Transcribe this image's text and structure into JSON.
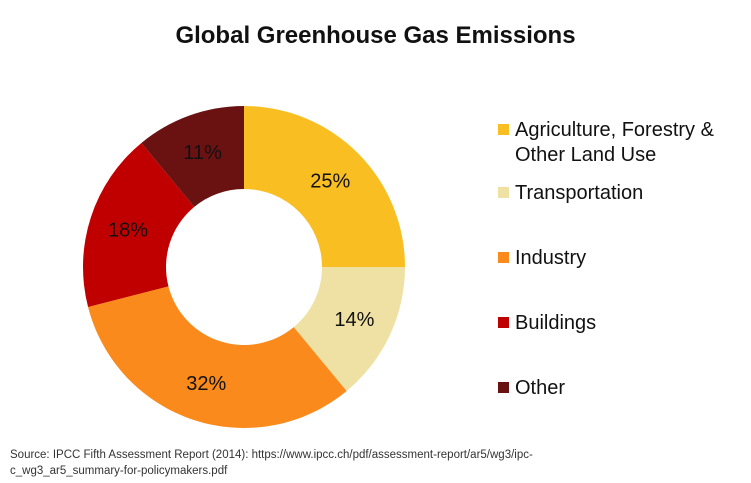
{
  "chart_data": {
    "type": "pie",
    "variant": "donut",
    "title": "Global Greenhouse Gas Emissions",
    "categories": [
      "Agriculture, Forestry & Other Land Use",
      "Transportation",
      "Industry",
      "Buildings",
      "Other"
    ],
    "legend_lines": [
      [
        "Agriculture, Forestry &",
        "Other Land Use"
      ],
      [
        "Transportation"
      ],
      [
        "Industry"
      ],
      [
        "Buildings"
      ],
      [
        "Other"
      ]
    ],
    "values": [
      25,
      14,
      32,
      18,
      11
    ],
    "labels": [
      "25%",
      "14%",
      "32%",
      "18%",
      "11%"
    ],
    "colors": [
      "#F9BF22",
      "#EFE1A3",
      "#FA8A1C",
      "#C00000",
      "#6A1212"
    ],
    "legend_position": "right",
    "source": "Source: IPCC Fifth Assessment Report (2014): https://www.ipcc.ch/pdf/assessment-report/ar5/wg3/ipc-c_wg3_ar5_summary-for-policymakers.pdf"
  }
}
